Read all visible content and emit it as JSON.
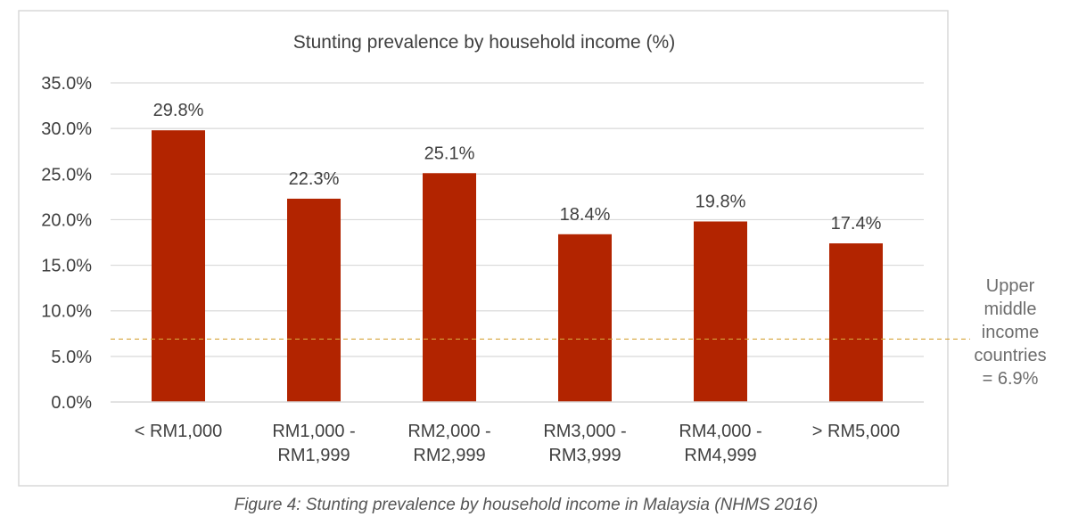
{
  "chart_data": {
    "type": "bar",
    "title": "Stunting prevalence by household income (%)",
    "categories": [
      [
        "< RM1,000"
      ],
      [
        "RM1,000 -",
        "RM1,999"
      ],
      [
        "RM2,000 -",
        "RM2,999"
      ],
      [
        "RM3,000 -",
        "RM3,999"
      ],
      [
        "RM4,000 -",
        "RM4,999"
      ],
      [
        "> RM5,000"
      ]
    ],
    "values": [
      29.8,
      22.3,
      25.1,
      18.4,
      19.8,
      17.4
    ],
    "data_labels": [
      "29.8%",
      "22.3%",
      "25.1%",
      "18.4%",
      "19.8%",
      "17.4%"
    ],
    "ylim": [
      0,
      35
    ],
    "ytick_values": [
      0,
      5,
      10,
      15,
      20,
      25,
      30,
      35
    ],
    "yticks": [
      "0.0%",
      "5.0%",
      "10.0%",
      "15.0%",
      "20.0%",
      "25.0%",
      "30.0%",
      "35.0%"
    ],
    "grid": true,
    "bar_color": "#b22400",
    "reference_line": {
      "value": 6.9,
      "style": "dashed",
      "color": "#d6a33a",
      "label": [
        "Upper",
        "middle",
        "income",
        "countries",
        "= 6.9%"
      ]
    }
  },
  "caption": "Figure 4: Stunting prevalence by household income in Malaysia (NHMS 2016)"
}
